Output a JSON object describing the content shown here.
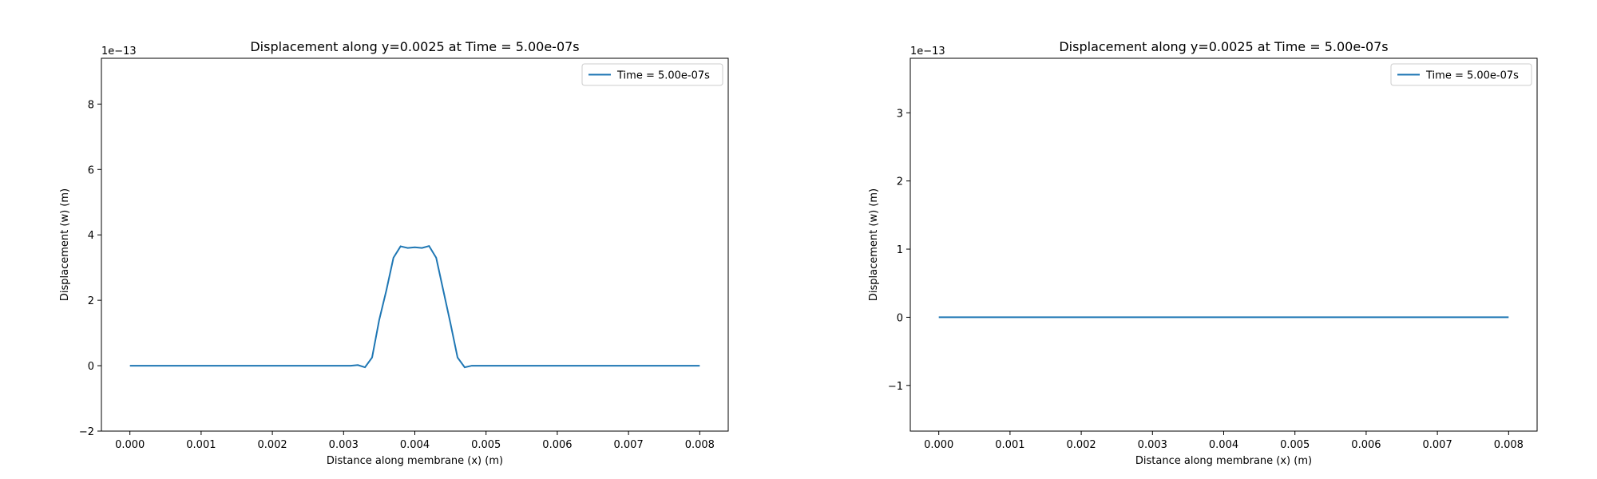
{
  "chart_data": [
    {
      "type": "line",
      "title": "Displacement along y=0.0025 at Time = 5.00e-07s",
      "xlabel": "Distance along membrane (x) (m)",
      "ylabel": "Displacement (w) (m)",
      "offset_label": "1e−13",
      "xlim": [
        -0.0004,
        0.0084
      ],
      "ylim": [
        -2,
        9.4
      ],
      "xticks": [
        0.0,
        0.001,
        0.002,
        0.003,
        0.004,
        0.005,
        0.006,
        0.007,
        0.008
      ],
      "xtick_labels": [
        "0.000",
        "0.001",
        "0.002",
        "0.003",
        "0.004",
        "0.005",
        "0.006",
        "0.007",
        "0.008"
      ],
      "yticks": [
        -2,
        0,
        2,
        4,
        6,
        8
      ],
      "ytick_labels": [
        "−2",
        "0",
        "2",
        "4",
        "6",
        "8"
      ],
      "legend_position": "upper-right",
      "grid": false,
      "series": [
        {
          "name": "Time = 5.00e-07s",
          "color": "#1f77b4",
          "x": [
            0.0,
            0.0031,
            0.0032,
            0.0033,
            0.0034,
            0.0035,
            0.0036,
            0.0037,
            0.0038,
            0.0039,
            0.004,
            0.0041,
            0.0042,
            0.0043,
            0.0044,
            0.0045,
            0.0046,
            0.0047,
            0.0048,
            0.008
          ],
          "y": [
            0.0,
            0.0,
            0.02,
            -0.05,
            0.25,
            1.4,
            2.3,
            3.3,
            3.65,
            3.6,
            3.62,
            3.6,
            3.66,
            3.3,
            2.3,
            1.3,
            0.25,
            -0.05,
            0.0,
            0.0
          ]
        }
      ]
    },
    {
      "type": "line",
      "title": "Displacement along y=0.0025 at Time = 5.00e-07s",
      "xlabel": "Distance along membrane (x) (m)",
      "ylabel": "Displacement (w) (m)",
      "offset_label": "1e−13",
      "xlim": [
        -0.0004,
        0.0084
      ],
      "ylim": [
        -1.67,
        3.8
      ],
      "xticks": [
        0.0,
        0.001,
        0.002,
        0.003,
        0.004,
        0.005,
        0.006,
        0.007,
        0.008
      ],
      "xtick_labels": [
        "0.000",
        "0.001",
        "0.002",
        "0.003",
        "0.004",
        "0.005",
        "0.006",
        "0.007",
        "0.008"
      ],
      "yticks": [
        -1,
        0,
        1,
        2,
        3
      ],
      "ytick_labels": [
        "−1",
        "0",
        "1",
        "2",
        "3"
      ],
      "legend_position": "upper-right",
      "grid": false,
      "series": [
        {
          "name": "Time = 5.00e-07s",
          "color": "#1f77b4",
          "x": [
            0.0,
            0.008
          ],
          "y": [
            0.0,
            0.0
          ]
        }
      ]
    }
  ]
}
